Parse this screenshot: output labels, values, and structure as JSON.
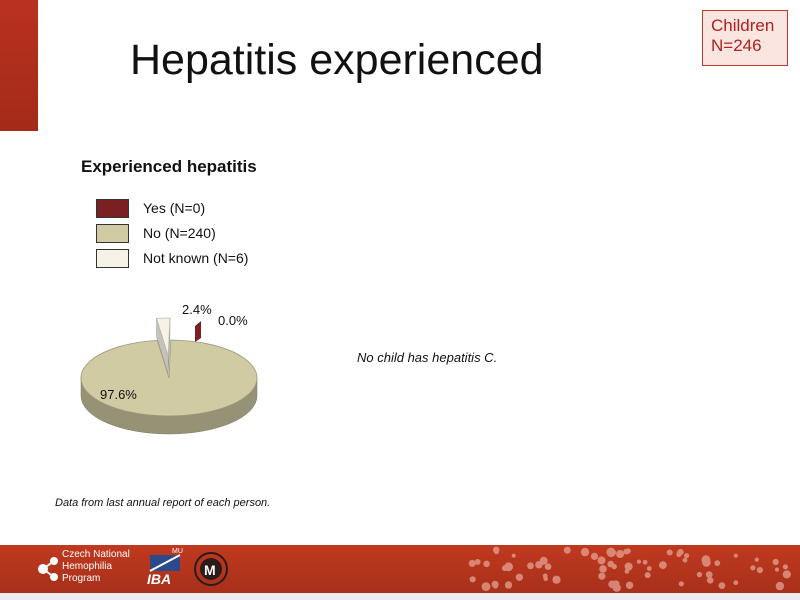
{
  "slide": {
    "title": "Hepatitis experienced",
    "cohort_line1": "Children",
    "cohort_line2": "N=246",
    "note": "No child has hepatitis C.",
    "footnote": "Data from last annual report of each person.",
    "accent_color": "#b5301d"
  },
  "legend": [
    {
      "label": "Yes (N=0)",
      "color": "#7a1f22"
    },
    {
      "label": "No (N=240)",
      "color": "#d0cba3"
    },
    {
      "label": "Not known (N=6)",
      "color": "#f6f3e6"
    }
  ],
  "chart_data": {
    "type": "pie",
    "title": "Experienced hepatitis",
    "categories": [
      "Yes (N=0)",
      "No (N=240)",
      "Not known (N=6)"
    ],
    "values": [
      0,
      240,
      6
    ],
    "percent_labels": [
      "0.0%",
      "97.6%",
      "2.4%"
    ],
    "colors": [
      "#7a1f22",
      "#d0cba3",
      "#f6f3e6"
    ],
    "exploded": "Not known (N=6)",
    "legend_position": "top-left",
    "style": "3d"
  },
  "footer": {
    "brand_line1": "Czech National",
    "brand_line2": "Hemophilia",
    "brand_line3": "Program",
    "logo1_text": "IBA",
    "logo1_sup": "MU",
    "logo2_icon": "university-seal-icon"
  }
}
